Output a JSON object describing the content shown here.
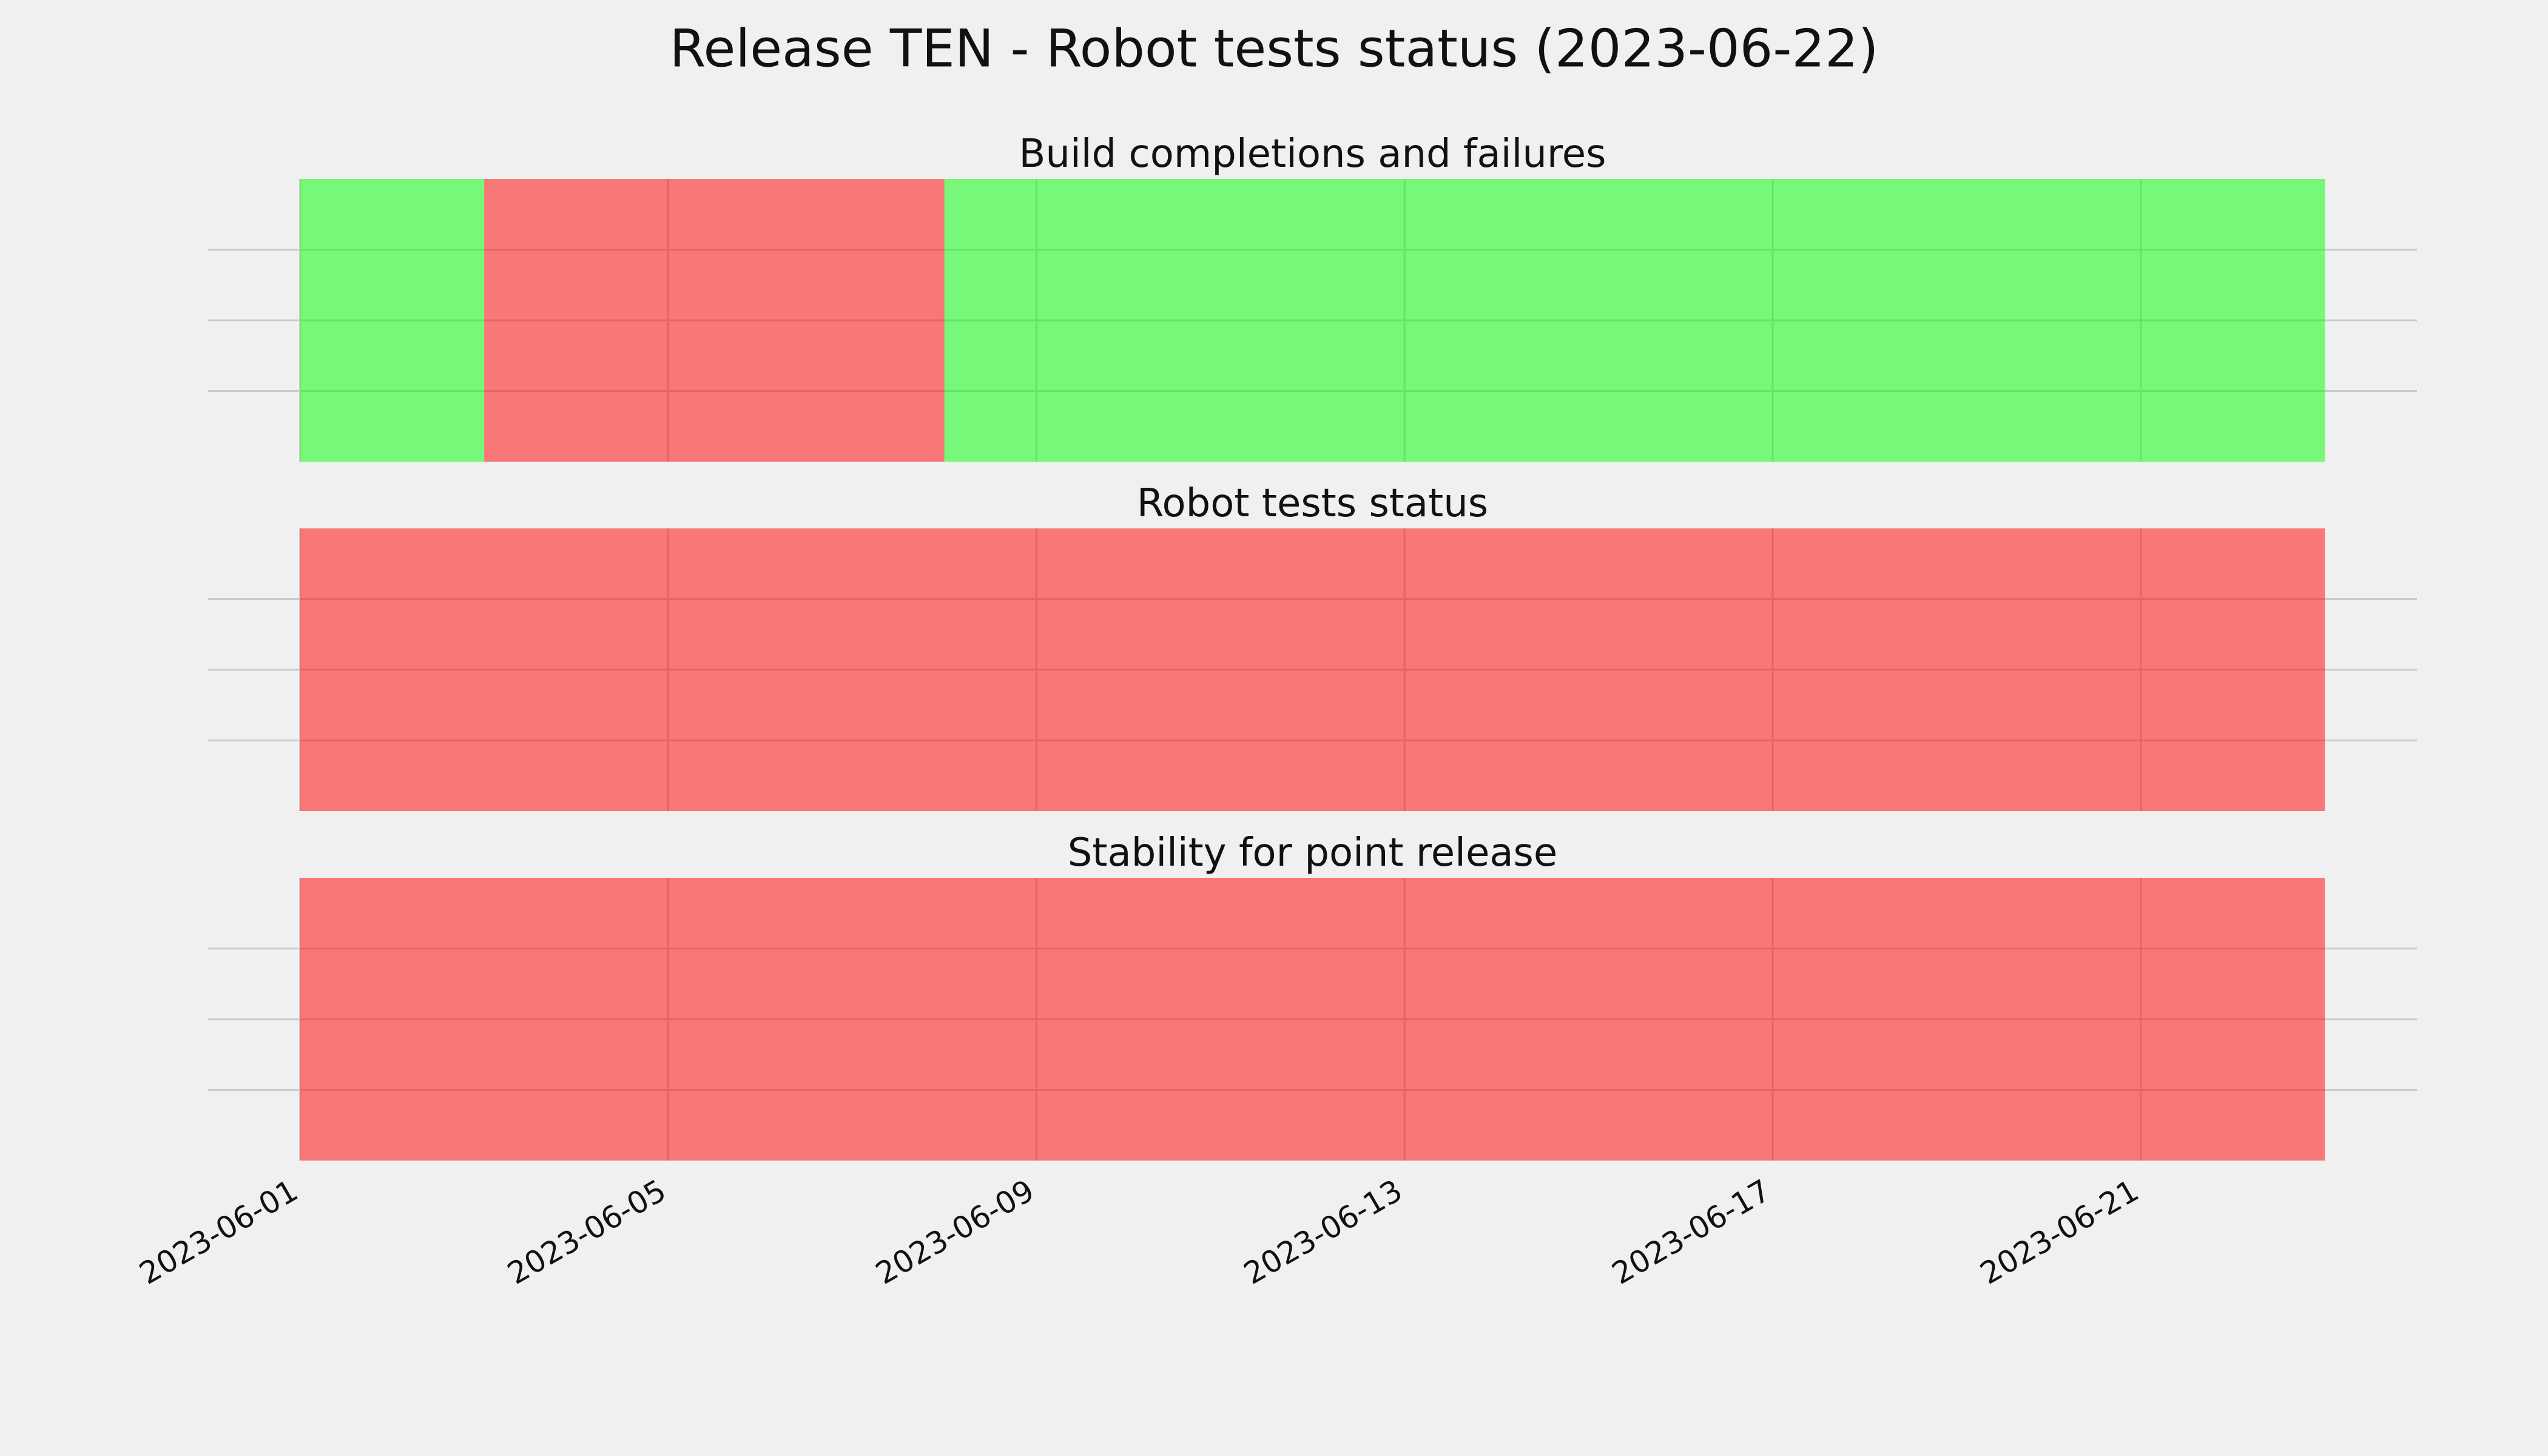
{
  "title": "Release TEN - Robot tests status (2023-06-22)",
  "chart_data": [
    {
      "type": "timeline",
      "title": "Build completions and failures",
      "segments": [
        {
          "start": "2023-06-01",
          "end": "2023-06-03",
          "color": "#00ff00"
        },
        {
          "start": "2023-06-03",
          "end": "2023-06-08",
          "color": "#ff0000"
        },
        {
          "start": "2023-06-08",
          "end": "2023-06-23",
          "color": "#00ff00"
        }
      ],
      "alpha": 0.5,
      "xlim": [
        "2023-05-31",
        "2023-06-24"
      ],
      "xticks": [
        "2023-06-01",
        "2023-06-05",
        "2023-06-09",
        "2023-06-13",
        "2023-06-17",
        "2023-06-21"
      ],
      "grid": true,
      "show_xticklabels": false
    },
    {
      "type": "timeline",
      "title": "Robot tests status",
      "segments": [
        {
          "start": "2023-06-01",
          "end": "2023-06-23",
          "color": "#ff0000"
        }
      ],
      "alpha": 0.5,
      "xlim": [
        "2023-05-31",
        "2023-06-24"
      ],
      "xticks": [
        "2023-06-01",
        "2023-06-05",
        "2023-06-09",
        "2023-06-13",
        "2023-06-17",
        "2023-06-21"
      ],
      "grid": true,
      "show_xticklabels": false
    },
    {
      "type": "timeline",
      "title": "Stability for point release",
      "segments": [
        {
          "start": "2023-06-01",
          "end": "2023-06-23",
          "color": "#ff0000"
        }
      ],
      "alpha": 0.5,
      "xlim": [
        "2023-05-31",
        "2023-06-24"
      ],
      "xticks": [
        "2023-06-01",
        "2023-06-05",
        "2023-06-09",
        "2023-06-13",
        "2023-06-17",
        "2023-06-21"
      ],
      "grid": true,
      "show_xticklabels": true
    }
  ]
}
